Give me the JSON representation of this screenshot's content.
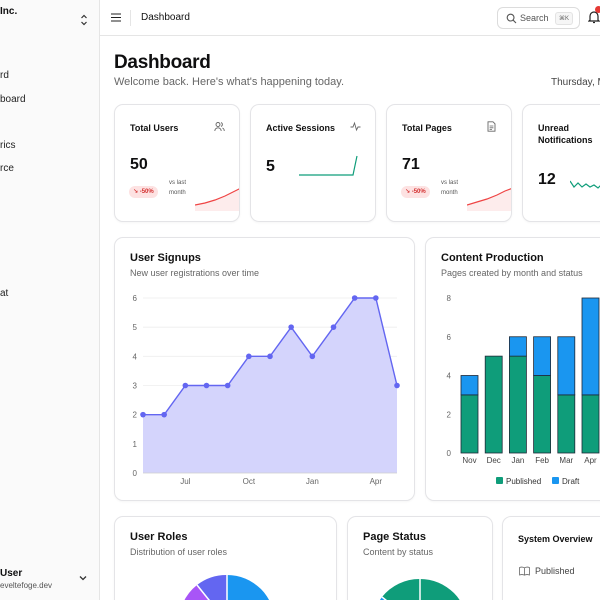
{
  "sidebar": {
    "brand": "Inc.",
    "nav": [
      "rd",
      "board",
      "rics",
      "rce",
      "at"
    ],
    "user_name": "User",
    "user_email": "eveltefoge.dev"
  },
  "topbar": {
    "title": "Dashboard",
    "search_label": "Search",
    "search_shortcut": "⌘K"
  },
  "header": {
    "title": "Dashboard",
    "welcome": "Welcome back. Here's what's happening today.",
    "date": "Thursday, M"
  },
  "stats": [
    {
      "title": "Total Users",
      "value": "50",
      "badge": "↘ -50%",
      "vs": "vs last month",
      "icon": "users-icon"
    },
    {
      "title": "Active Sessions",
      "value": "5",
      "icon": "activity-icon"
    },
    {
      "title": "Total Pages",
      "value": "71",
      "badge": "↘ -50%",
      "vs": "vs last month",
      "icon": "file-icon"
    },
    {
      "title": "Unread Notifications",
      "value": "12",
      "icon": "bell-icon"
    }
  ],
  "signups": {
    "title": "User Signups",
    "subtitle": "New user registrations over time"
  },
  "production": {
    "title": "Content Production",
    "subtitle": "Pages created by month and status",
    "legend": [
      "Published",
      "Draft"
    ]
  },
  "roles": {
    "title": "User Roles",
    "subtitle": "Distribution of user roles"
  },
  "page_status": {
    "title": "Page Status",
    "subtitle": "Content by status"
  },
  "system": {
    "title": "System Overview",
    "item": "Published"
  },
  "colors": {
    "accent": "#6366f1",
    "area_fill": "#d4d4fc",
    "published": "#0f9d7a",
    "draft": "#1a96f0",
    "negative": "#ef4444"
  },
  "chart_data": [
    {
      "type": "area",
      "x": [
        "",
        "",
        "Jul",
        "",
        "",
        "Oct",
        "",
        "",
        "Jan",
        "",
        "",
        "Apr",
        ""
      ],
      "xticks": [
        "Jul",
        "Oct",
        "Jan",
        "Apr"
      ],
      "values": [
        2,
        2,
        3,
        3,
        3,
        4,
        4,
        5,
        4,
        5,
        6,
        6,
        3
      ],
      "ylim": [
        0,
        6
      ],
      "yticks": [
        0,
        1,
        2,
        3,
        4,
        5,
        6
      ],
      "grid": true
    },
    {
      "type": "bar",
      "stacked": true,
      "categories": [
        "Nov",
        "Dec",
        "Jan",
        "Feb",
        "Mar",
        "Apr"
      ],
      "series": [
        {
          "name": "Published",
          "values": [
            3,
            5,
            5,
            4,
            3,
            3
          ]
        },
        {
          "name": "Draft",
          "values": [
            1,
            0,
            1,
            2,
            3,
            5
          ]
        }
      ],
      "ylim": [
        0,
        8
      ],
      "yticks": [
        0,
        2,
        4,
        6,
        8
      ],
      "legend": "bottom"
    }
  ]
}
